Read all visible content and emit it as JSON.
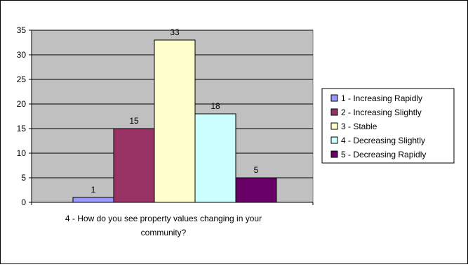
{
  "chart_data": {
    "type": "bar",
    "categories": [
      "1 - Increasing Rapidly",
      "2 - Increasing Slightly",
      "3 - Stable",
      "4 - Decreasing Slightly",
      "5 - Decreasing Rapidly"
    ],
    "values": [
      1,
      15,
      33,
      18,
      5
    ],
    "colors": [
      "#9999ff",
      "#993366",
      "#ffffcc",
      "#ccffff",
      "#660066"
    ],
    "xlabel_lines": [
      "4 - How do you see property values changing in your",
      "community?"
    ],
    "ylim": [
      0,
      35
    ],
    "yticks": [
      0,
      5,
      10,
      15,
      20,
      25,
      30,
      35
    ],
    "plot_background": "#c0c0c0",
    "grid": true,
    "legend_position": "right"
  }
}
